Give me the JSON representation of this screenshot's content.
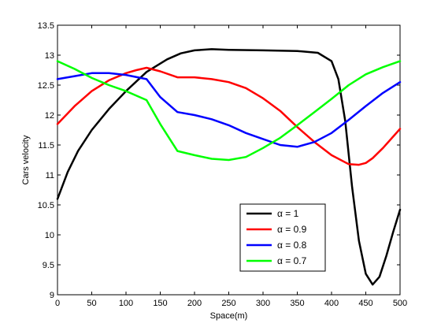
{
  "chart_data": {
    "type": "line",
    "xlabel": "Space(m)",
    "ylabel": "Cars velocity",
    "xlim": [
      0,
      500
    ],
    "ylim": [
      9,
      13.5
    ],
    "xticks": [
      0,
      50,
      100,
      150,
      200,
      250,
      300,
      350,
      400,
      450,
      500
    ],
    "yticks": [
      9,
      9.5,
      10,
      10.5,
      11,
      11.5,
      12,
      12.5,
      13,
      13.5
    ],
    "grid": false,
    "legend_position": "lower-right",
    "series": [
      {
        "name": "α = 1",
        "color": "#000000",
        "x": [
          0,
          15,
          30,
          50,
          75,
          100,
          130,
          160,
          180,
          200,
          225,
          250,
          300,
          350,
          380,
          400,
          410,
          420,
          430,
          440,
          450,
          460,
          470,
          480,
          490,
          500
        ],
        "y": [
          10.6,
          11.05,
          11.4,
          11.75,
          12.1,
          12.4,
          12.72,
          12.93,
          13.03,
          13.08,
          13.1,
          13.09,
          13.08,
          13.07,
          13.04,
          12.9,
          12.6,
          11.9,
          10.8,
          9.9,
          9.35,
          9.17,
          9.3,
          9.65,
          10.05,
          10.42
        ]
      },
      {
        "name": "α = 0.9",
        "color": "#ff0000",
        "x": [
          0,
          25,
          50,
          75,
          100,
          115,
          130,
          150,
          175,
          200,
          225,
          250,
          275,
          300,
          325,
          350,
          375,
          400,
          425,
          440,
          450,
          460,
          475,
          500
        ],
        "y": [
          11.85,
          12.15,
          12.4,
          12.58,
          12.7,
          12.75,
          12.79,
          12.73,
          12.63,
          12.63,
          12.6,
          12.55,
          12.45,
          12.28,
          12.07,
          11.8,
          11.55,
          11.33,
          11.18,
          11.17,
          11.2,
          11.28,
          11.45,
          11.77
        ]
      },
      {
        "name": "α = 0.8",
        "color": "#0000ff",
        "x": [
          0,
          25,
          50,
          75,
          100,
          130,
          150,
          175,
          200,
          225,
          250,
          275,
          300,
          325,
          350,
          375,
          400,
          425,
          450,
          475,
          500
        ],
        "y": [
          12.6,
          12.65,
          12.7,
          12.7,
          12.67,
          12.6,
          12.3,
          12.05,
          12.0,
          11.93,
          11.83,
          11.7,
          11.6,
          11.5,
          11.47,
          11.55,
          11.7,
          11.92,
          12.15,
          12.37,
          12.55
        ]
      },
      {
        "name": "α = 0.7",
        "color": "#00ff00",
        "x": [
          0,
          25,
          50,
          75,
          100,
          130,
          150,
          175,
          200,
          225,
          250,
          275,
          300,
          325,
          350,
          375,
          400,
          425,
          450,
          475,
          500
        ],
        "y": [
          12.9,
          12.77,
          12.62,
          12.5,
          12.4,
          12.25,
          11.85,
          11.4,
          11.33,
          11.27,
          11.25,
          11.3,
          11.45,
          11.62,
          11.83,
          12.05,
          12.27,
          12.5,
          12.68,
          12.8,
          12.9
        ]
      }
    ]
  }
}
